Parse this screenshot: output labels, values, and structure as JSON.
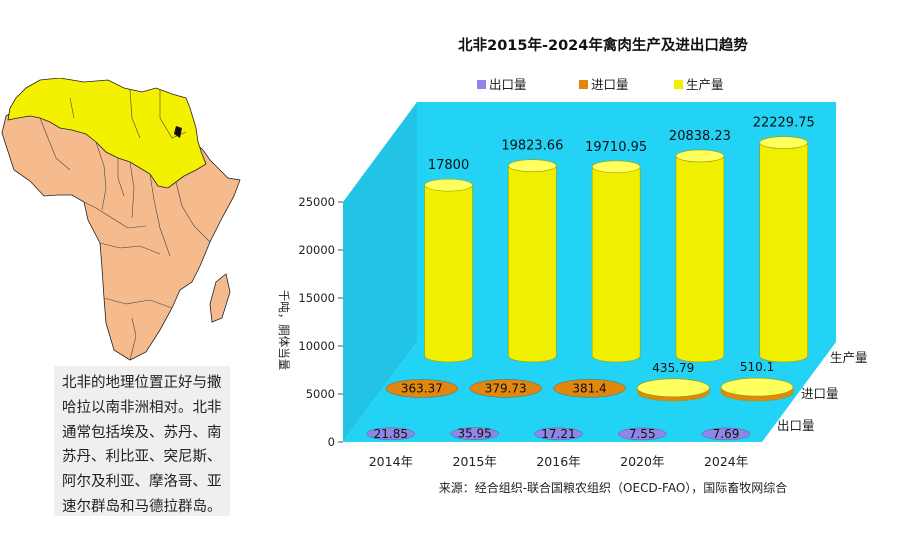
{
  "description": "北非的地理位置正好与撒哈拉以南非洲相对。北非通常包括埃及、苏丹、南苏丹、利比亚、突尼斯、阿尔及利亚、摩洛哥、亚速尔群岛和马德拉群岛。",
  "colors": {
    "map_fill": "#f5bb8d",
    "map_highlight": "#f4f100",
    "plot_wall": "#22d3f5",
    "plot_side": "#22c4e6",
    "plot_floor": "#22d3f5",
    "export": "#8e86e8",
    "import": "#e0870e",
    "production": "#f0ef00"
  },
  "chart_data": {
    "type": "bar",
    "shape": "3d-cylinder",
    "title": "北非2015年-2024年禽肉生产及进出口趋势",
    "ylabel": "千吨，胴体当量",
    "ylim": [
      0,
      25000
    ],
    "yticks": [
      0,
      5000,
      10000,
      15000,
      20000,
      25000
    ],
    "categories": [
      "2014年",
      "2015年",
      "2016年",
      "2020年",
      "2024年"
    ],
    "legend_position": "top",
    "series": [
      {
        "name": "出口量",
        "depth_label": "出口量",
        "color": "#8e86e8",
        "values": [
          21.85,
          35.95,
          17.21,
          7.55,
          7.69
        ],
        "labels": [
          "21.85",
          "35.95",
          "17.21",
          "7.55",
          "7.69"
        ]
      },
      {
        "name": "进口量",
        "depth_label": "进口量",
        "color": "#e0870e",
        "values": [
          363.37,
          379.73,
          381.4,
          435.79,
          510.1
        ],
        "labels": [
          "363.37",
          "379.73",
          "381.4",
          "435.79",
          "510.1"
        ]
      },
      {
        "name": "生产量",
        "depth_label": "生产量",
        "color": "#f0ef00",
        "values": [
          17800,
          19823.66,
          19710.95,
          20838.23,
          22229.75
        ],
        "labels": [
          "17800",
          "19823.66",
          "19710.95",
          "20838.23",
          "22229.75"
        ]
      }
    ],
    "source": "来源：经合组织-联合国粮农组织（OECD-FAO），国际畜牧网综合"
  }
}
